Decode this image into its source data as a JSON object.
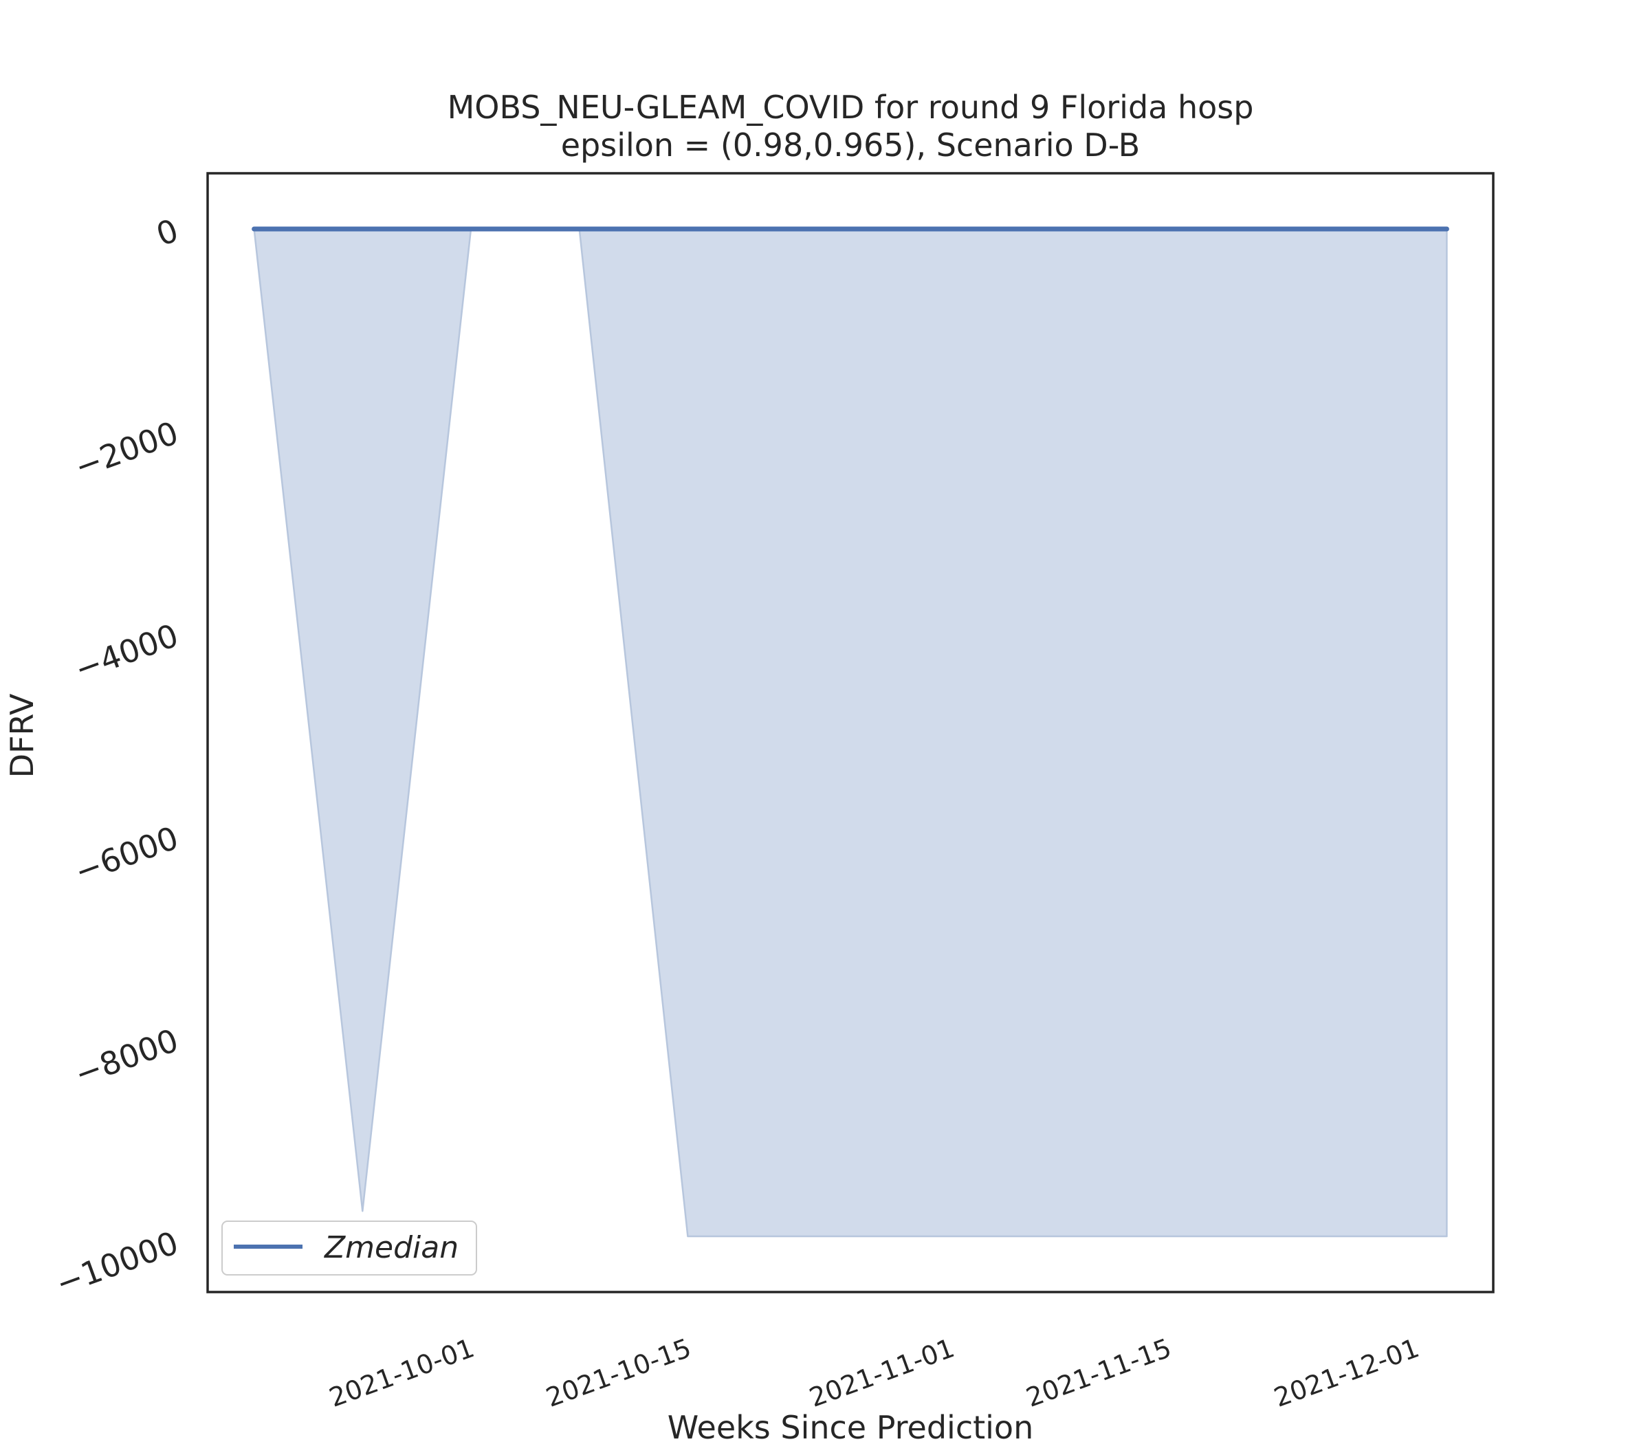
{
  "chart_data": {
    "type": "area",
    "title_line1": "MOBS_NEU-GLEAM_COVID for round 9 Florida  hosp",
    "title_line2": "epsilon = (0.98,0.965), Scenario D-B",
    "xlabel": "Weeks Since Prediction",
    "ylabel": "DFRV",
    "x": [
      "2021-09-18",
      "2021-09-25",
      "2021-10-02",
      "2021-10-09",
      "2021-10-16",
      "2021-10-23",
      "2021-10-30",
      "2021-11-06",
      "2021-11-13",
      "2021-11-20",
      "2021-11-27",
      "2021-12-04"
    ],
    "series": [
      {
        "name": "Zmedian",
        "values": [
          0,
          0,
          0,
          0,
          0,
          0,
          0,
          0,
          0,
          0,
          0,
          0
        ],
        "color": "#4c72b0"
      }
    ],
    "band": {
      "lower": [
        0,
        -9700,
        0,
        0,
        -9950,
        -9950,
        -9950,
        -9950,
        -9950,
        -9950,
        -9950,
        -9950
      ],
      "upper": [
        0,
        0,
        0,
        0,
        0,
        0,
        0,
        0,
        0,
        0,
        0,
        0
      ],
      "color": "#d1dbeb",
      "edge_color": "#b7c6dd"
    },
    "yticks": [
      0,
      -2000,
      -4000,
      -6000,
      -8000,
      -10000
    ],
    "ytick_labels": [
      "0",
      "−2000",
      "−4000",
      "−6000",
      "−8000",
      "−10000"
    ],
    "xticks": [
      "2021-10-01",
      "2021-10-15",
      "2021-11-01",
      "2021-11-15",
      "2021-12-01"
    ],
    "ylim": [
      -10500,
      550
    ],
    "xlim": [
      "2021-09-15",
      "2021-12-07"
    ],
    "grid": false,
    "legend_position": "lower-left"
  }
}
